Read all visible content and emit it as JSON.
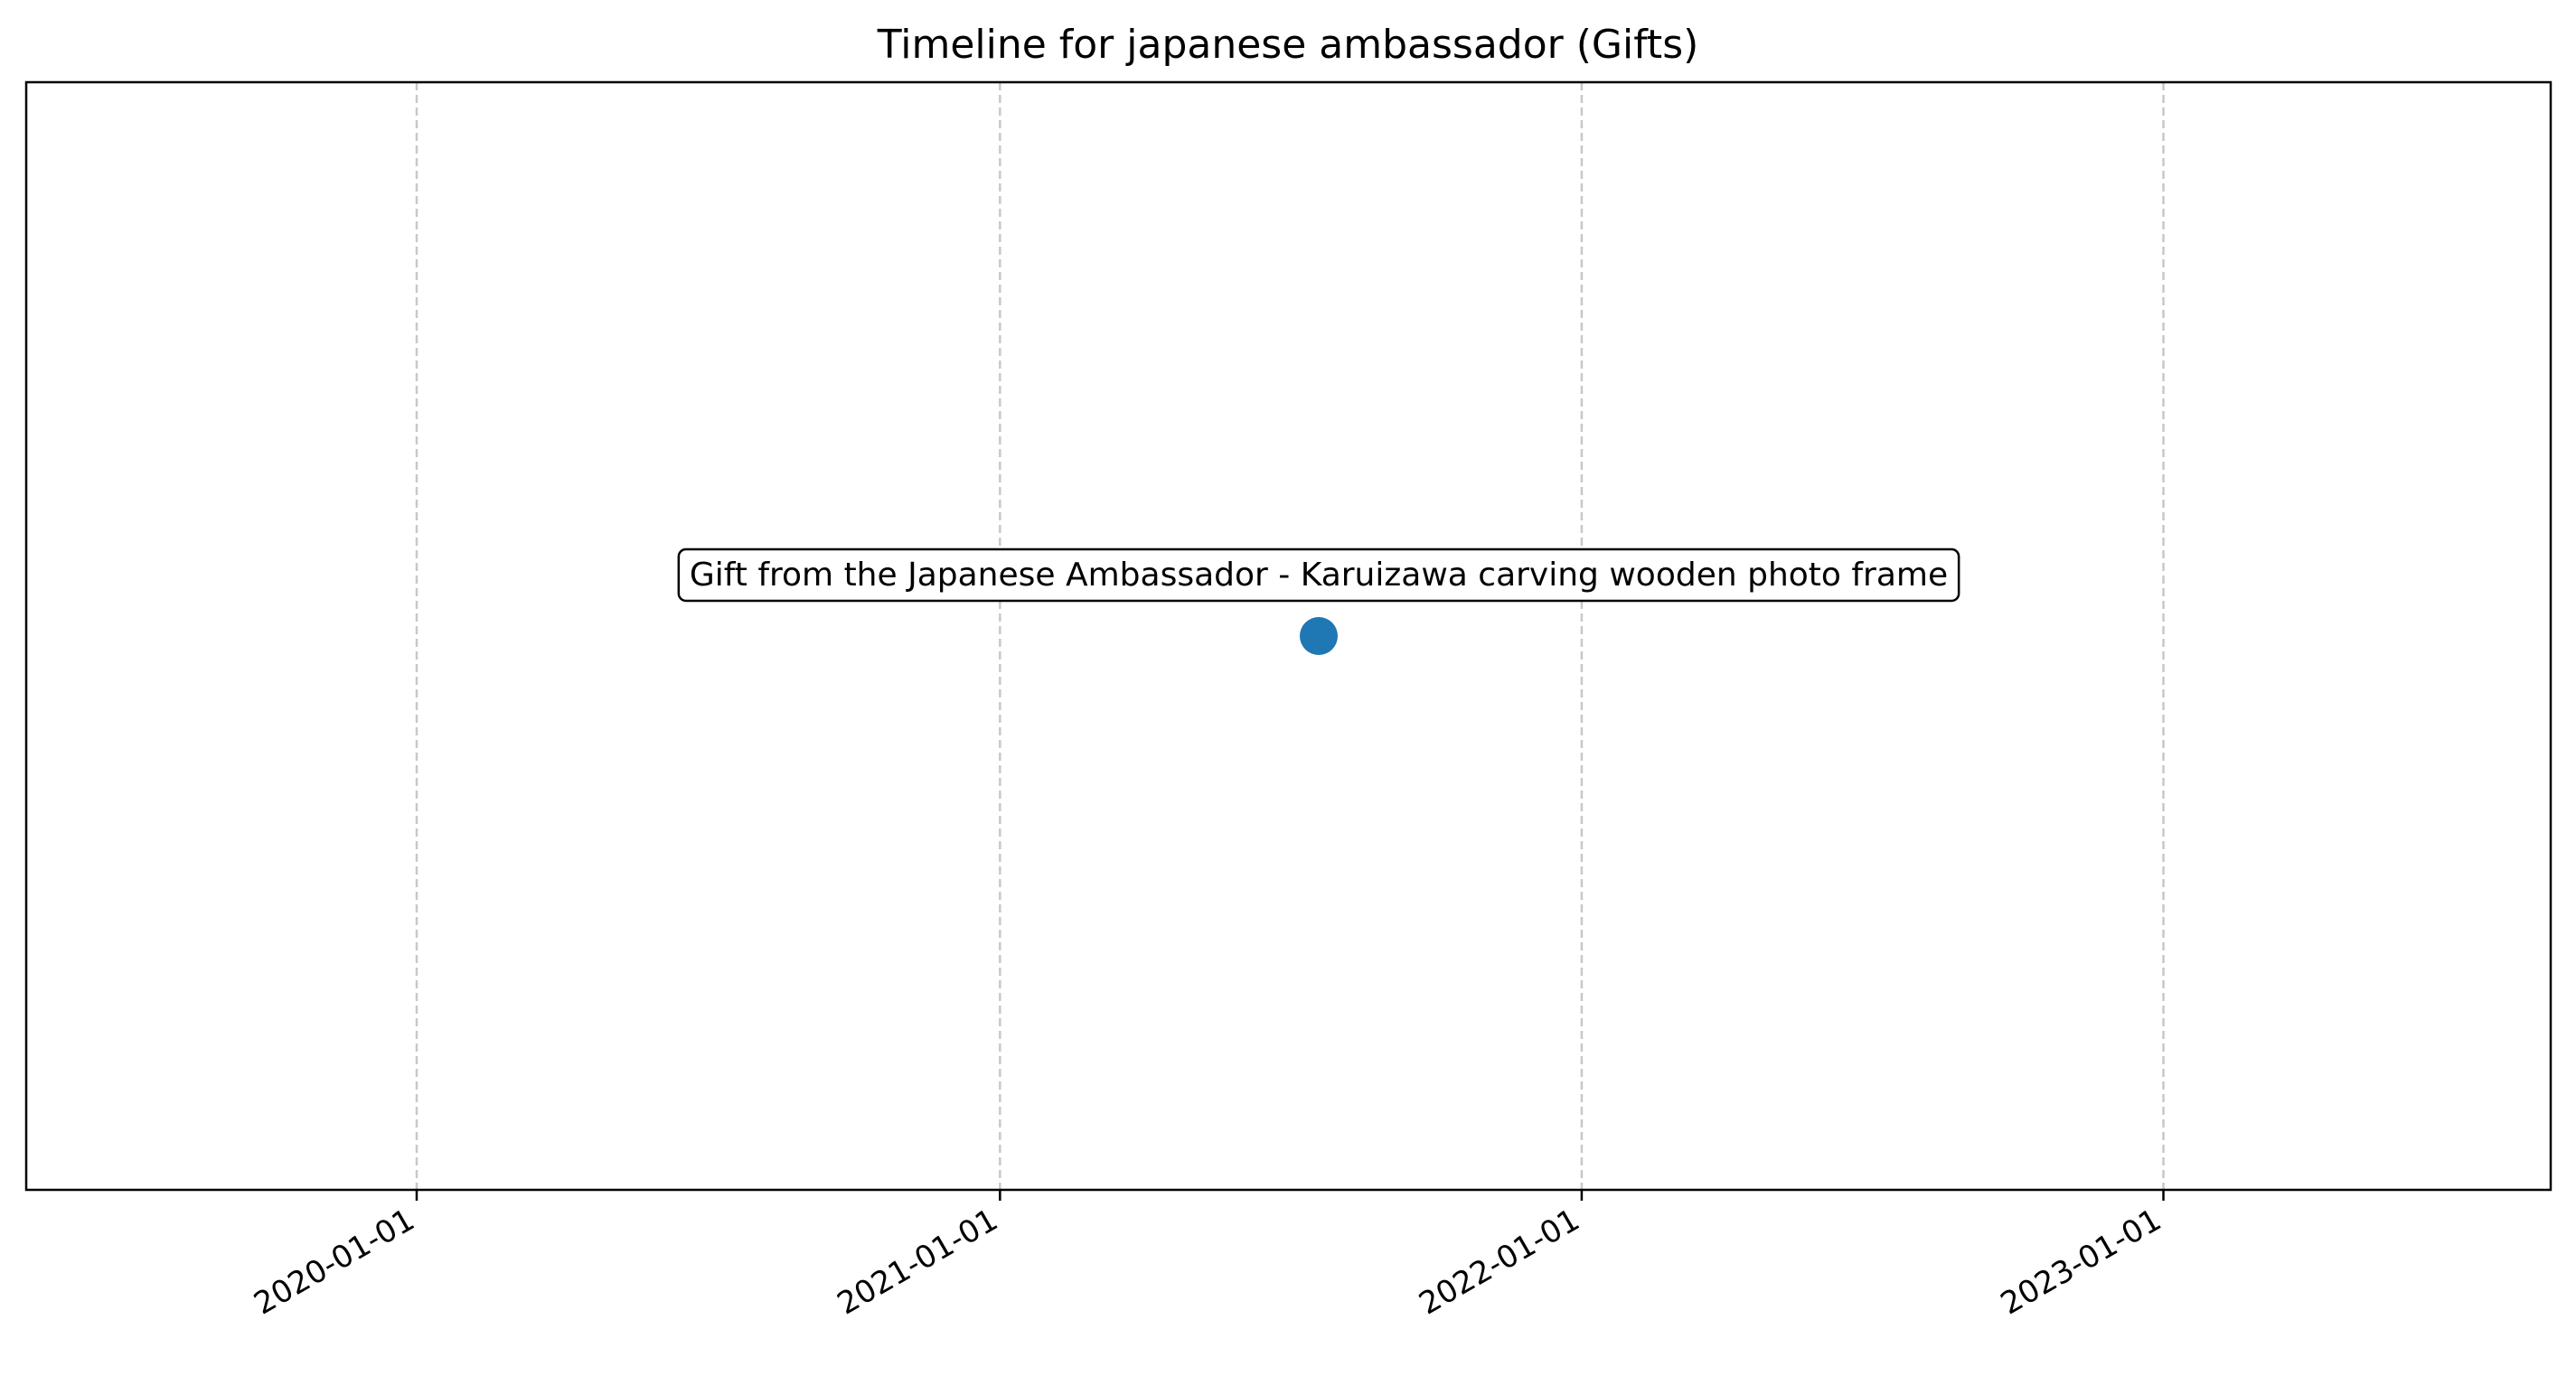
{
  "chart_data": {
    "type": "scatter",
    "title": "Timeline for japanese ambassador (Gifts)",
    "xlabel": "",
    "ylabel": "",
    "x_axis": "date",
    "xlim": [
      "2019-05-01",
      "2023-09-01"
    ],
    "ylim": [
      0,
      1
    ],
    "xticks": [
      "2020-01-01",
      "2021-01-01",
      "2022-01-01",
      "2023-01-01"
    ],
    "grid": "x-dashed",
    "points": [
      {
        "x": "2021-07-20",
        "y": 0.5,
        "label": "Gift from the Japanese Ambassador - Karuizawa carving wooden photo frame"
      }
    ],
    "colors": {
      "point": "#1f77b4",
      "grid": "#c8c8c8",
      "frame": "#000000"
    }
  }
}
